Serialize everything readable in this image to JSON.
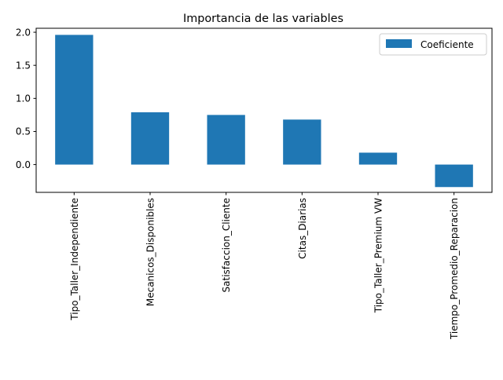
{
  "chart_data": {
    "type": "bar",
    "title": "Importancia de las variables",
    "xlabel": "",
    "ylabel": "",
    "categories": [
      "Tipo_Taller_Independiente",
      "Mecanicos_Disponibles",
      "Satisfaccion_Cliente",
      "Citas_Diarias",
      "Tipo_Taller_Premium VW",
      "Tiempo_Promedio_Reparacion"
    ],
    "series": [
      {
        "name": "Coeficiente",
        "values": [
          1.96,
          0.79,
          0.75,
          0.68,
          0.18,
          -0.34
        ],
        "color": "#1f77b4"
      }
    ],
    "ylim": [
      -0.42,
      2.06
    ],
    "yticks": [
      0.0,
      0.5,
      1.0,
      1.5,
      2.0
    ],
    "ytick_labels": [
      "0.0",
      "0.5",
      "1.0",
      "1.5",
      "2.0"
    ],
    "grid": false,
    "legend_position": "top-right"
  }
}
